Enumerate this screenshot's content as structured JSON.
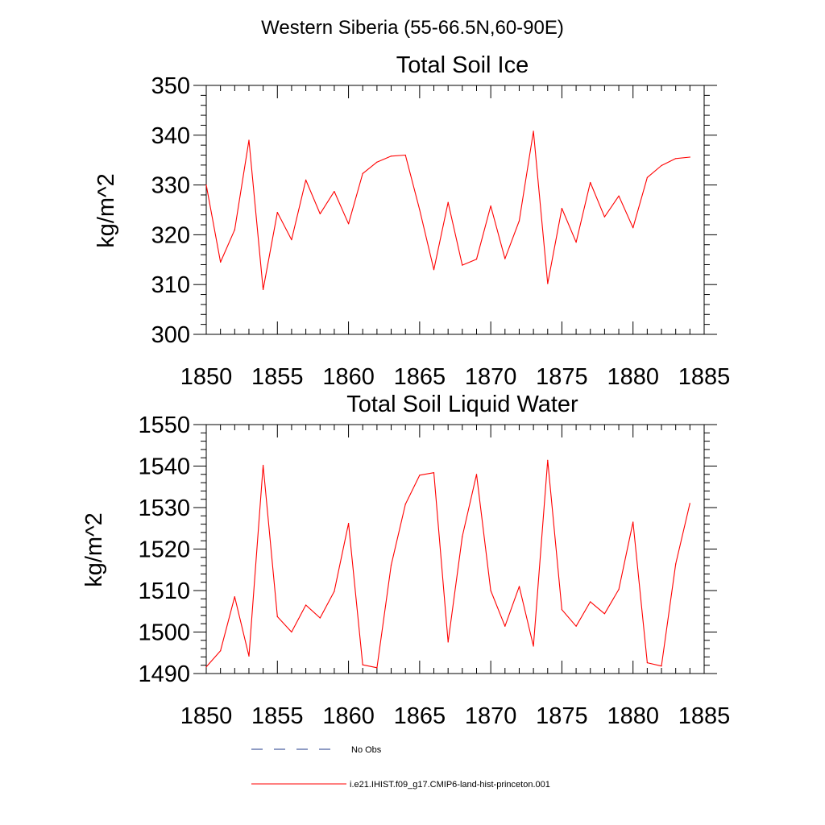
{
  "figure": {
    "suptitle": "Western Siberia (55-66.5N,60-90E)",
    "legend": [
      {
        "label": "No Obs",
        "color": "#1f3a8a",
        "style": "dashed"
      },
      {
        "label": "i.e21.IHIST.f09_g17.CMIP6-land-hist-princeton.001",
        "color": "#ff0000",
        "style": "solid"
      }
    ]
  },
  "chart_data": [
    {
      "type": "line",
      "title": "Total Soil Ice",
      "xlabel": "",
      "ylabel": "kg/m^2",
      "xlim": [
        1850,
        1885
      ],
      "ylim": [
        300,
        350
      ],
      "xticks": [
        1850,
        1855,
        1860,
        1865,
        1870,
        1875,
        1880,
        1885
      ],
      "yticks": [
        300,
        310,
        320,
        330,
        340,
        350
      ],
      "grid": false,
      "series": [
        {
          "color": "#ff0000",
          "x": [
            1850,
            1851,
            1852,
            1853,
            1854,
            1855,
            1856,
            1857,
            1858,
            1859,
            1860,
            1861,
            1862,
            1863,
            1864,
            1865,
            1866,
            1867,
            1868,
            1869,
            1870,
            1871,
            1872,
            1873,
            1874,
            1875,
            1876,
            1877,
            1878,
            1879,
            1880,
            1881,
            1882,
            1883,
            1884
          ],
          "values": [
            330.0,
            314.5,
            321.0,
            339.0,
            309.0,
            324.5,
            319.0,
            331.0,
            324.2,
            328.7,
            322.2,
            332.3,
            334.6,
            335.8,
            336.0,
            325.0,
            313.0,
            326.5,
            313.9,
            315.1,
            325.8,
            315.2,
            322.8,
            340.8,
            310.2,
            325.3,
            318.5,
            330.5,
            323.6,
            327.8,
            321.4,
            331.5,
            333.9,
            335.3,
            335.6
          ]
        }
      ]
    },
    {
      "type": "line",
      "title": "Total Soil Liquid Water",
      "xlabel": "",
      "ylabel": "kg/m^2",
      "xlim": [
        1850,
        1885
      ],
      "ylim": [
        1490,
        1550
      ],
      "xticks": [
        1850,
        1855,
        1860,
        1865,
        1870,
        1875,
        1880,
        1885
      ],
      "yticks": [
        1490,
        1500,
        1510,
        1520,
        1530,
        1540,
        1550
      ],
      "grid": false,
      "series": [
        {
          "color": "#ff0000",
          "x": [
            1850,
            1851,
            1852,
            1853,
            1854,
            1855,
            1856,
            1857,
            1858,
            1859,
            1860,
            1861,
            1862,
            1863,
            1864,
            1865,
            1866,
            1867,
            1868,
            1869,
            1870,
            1871,
            1872,
            1873,
            1874,
            1875,
            1876,
            1877,
            1878,
            1879,
            1880,
            1881,
            1882,
            1883,
            1884
          ],
          "values": [
            1491.6,
            1495.5,
            1508.5,
            1494.2,
            1540.2,
            1503.7,
            1500.0,
            1506.5,
            1503.4,
            1509.8,
            1526.2,
            1492.1,
            1491.4,
            1516.1,
            1530.8,
            1537.8,
            1538.4,
            1497.6,
            1523.0,
            1538.0,
            1510.0,
            1501.4,
            1511.0,
            1496.6,
            1541.4,
            1505.4,
            1501.4,
            1507.3,
            1504.4,
            1510.3,
            1526.5,
            1492.6,
            1491.8,
            1516.4,
            1531.0
          ]
        }
      ]
    }
  ]
}
